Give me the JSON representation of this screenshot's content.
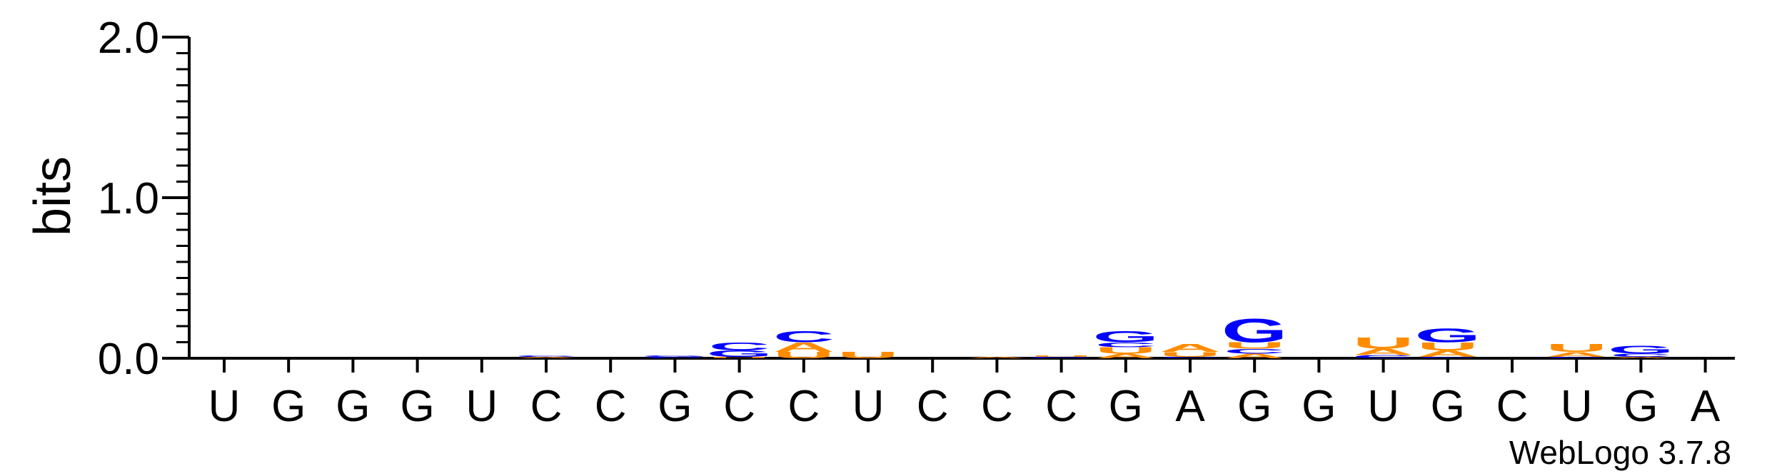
{
  "chart_data": {
    "type": "sequence-logo",
    "ylabel": "bits",
    "ylim": [
      0,
      2
    ],
    "y_ticks": [
      "0.0",
      "1.0",
      "2.0"
    ],
    "positions": [
      "U",
      "G",
      "G",
      "G",
      "U",
      "C",
      "C",
      "G",
      "C",
      "C",
      "U",
      "C",
      "C",
      "C",
      "G",
      "A",
      "G",
      "G",
      "U",
      "G",
      "C",
      "U",
      "G",
      "A"
    ],
    "stacks": [
      [],
      [],
      [],
      [],
      [],
      [
        {
          "letter": "A",
          "bits": 0.01
        },
        {
          "letter": "C",
          "bits": 0.01
        }
      ],
      [],
      [
        {
          "letter": "C",
          "bits": 0.01
        },
        {
          "letter": "G",
          "bits": 0.01
        }
      ],
      [
        {
          "letter": "U",
          "bits": 0.01
        },
        {
          "letter": "G",
          "bits": 0.04
        },
        {
          "letter": "C",
          "bits": 0.05
        }
      ],
      [
        {
          "letter": "U",
          "bits": 0.04
        },
        {
          "letter": "A",
          "bits": 0.06
        },
        {
          "letter": "C",
          "bits": 0.07
        }
      ],
      [
        {
          "letter": "U",
          "bits": 0.04
        }
      ],
      [],
      [
        {
          "letter": "A",
          "bits": 0.01
        }
      ],
      [
        {
          "letter": "G",
          "bits": 0.01
        },
        {
          "letter": "U",
          "bits": 0.01
        }
      ],
      [
        {
          "letter": "A",
          "bits": 0.03
        },
        {
          "letter": "U",
          "bits": 0.04
        },
        {
          "letter": "C",
          "bits": 0.03
        },
        {
          "letter": "G",
          "bits": 0.07
        }
      ],
      [
        {
          "letter": "C",
          "bits": 0.01
        },
        {
          "letter": "U",
          "bits": 0.03
        },
        {
          "letter": "A",
          "bits": 0.05
        }
      ],
      [
        {
          "letter": "A",
          "bits": 0.03
        },
        {
          "letter": "C",
          "bits": 0.03
        },
        {
          "letter": "U",
          "bits": 0.04
        },
        {
          "letter": "G",
          "bits": 0.15
        }
      ],
      [],
      [
        {
          "letter": "C",
          "bits": 0.02
        },
        {
          "letter": "A",
          "bits": 0.04
        },
        {
          "letter": "U",
          "bits": 0.07
        }
      ],
      [
        {
          "letter": "C",
          "bits": 0.01
        },
        {
          "letter": "A",
          "bits": 0.04
        },
        {
          "letter": "U",
          "bits": 0.05
        },
        {
          "letter": "G",
          "bits": 0.09
        }
      ],
      [],
      [
        {
          "letter": "C",
          "bits": 0.01
        },
        {
          "letter": "A",
          "bits": 0.03
        },
        {
          "letter": "U",
          "bits": 0.05
        }
      ],
      [
        {
          "letter": "A",
          "bits": 0.01
        },
        {
          "letter": "C",
          "bits": 0.02
        },
        {
          "letter": "G",
          "bits": 0.05
        }
      ],
      []
    ],
    "colors": {
      "A": "#ff8c00",
      "U": "#ff8c00",
      "C": "#0000ff",
      "G": "#0000ff"
    },
    "grid": false,
    "legend": "none"
  },
  "footer": {
    "label": "WebLogo 3.7.8"
  }
}
